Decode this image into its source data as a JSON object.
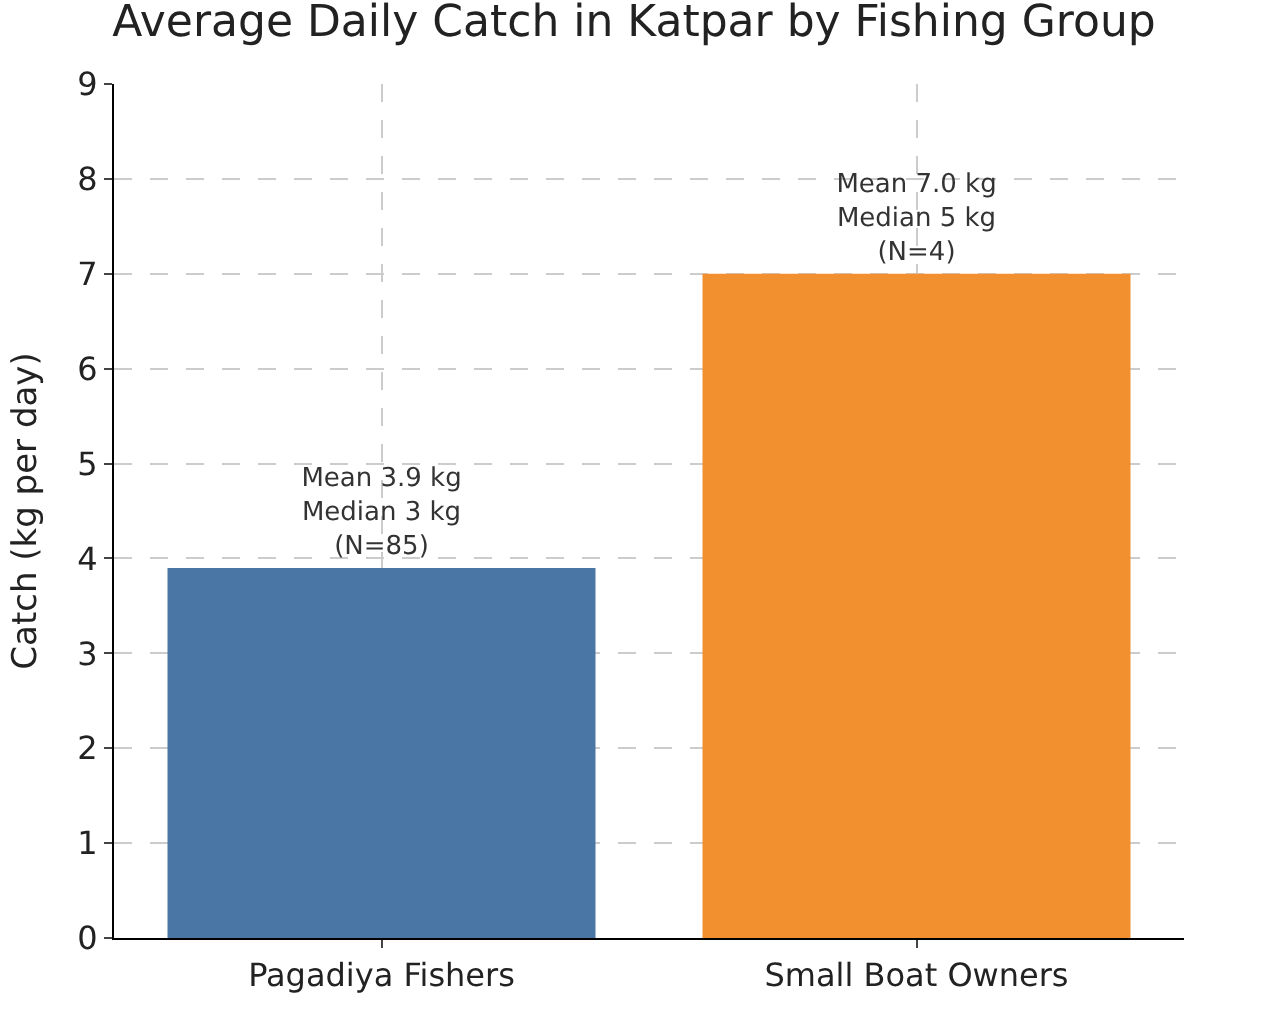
{
  "chart_data": {
    "type": "bar",
    "title": "Average Daily Catch in Katpar by Fishing Group",
    "ylabel": "Catch (kg per day)",
    "categories": [
      "Pagadiya Fishers",
      "Small Boat Owners"
    ],
    "values": [
      3.9,
      7.0
    ],
    "colors": [
      "#4a76a6",
      "#f28f2f"
    ],
    "value_labels": [
      "Mean 3.9 kg\nMedian 3 kg\n(N=85)",
      "Mean 7.0 kg\nMedian 5 kg\n(N=4)"
    ],
    "ylim": [
      0,
      9
    ],
    "yticks": [
      0,
      1,
      2,
      3,
      4,
      5,
      6,
      7,
      8,
      9
    ],
    "grid": true
  }
}
